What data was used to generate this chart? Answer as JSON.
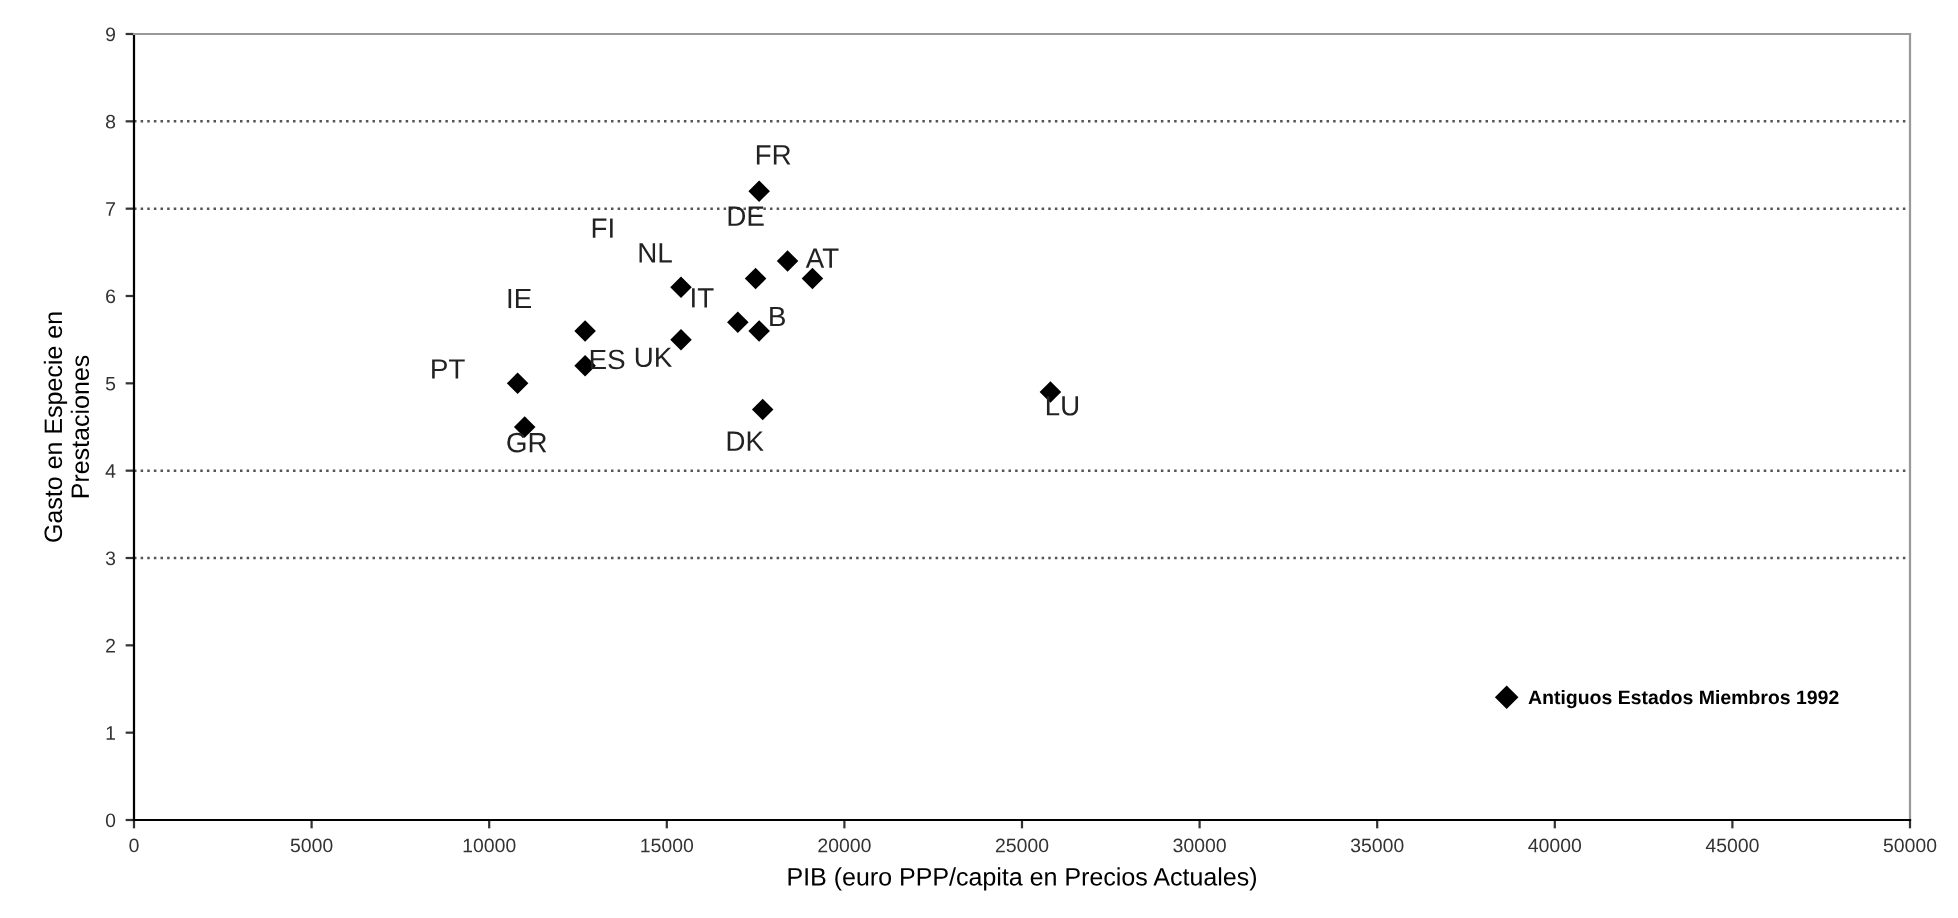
{
  "chart_data": {
    "type": "scatter",
    "xlabel": "PIB (euro PPP/capita en Precios Actuales)",
    "ylabel": "Gasto en Especie en\nPrestaciones",
    "xlim": [
      0,
      50000
    ],
    "ylim": [
      0,
      9
    ],
    "xticks": [
      0,
      5000,
      10000,
      15000,
      20000,
      25000,
      30000,
      35000,
      40000,
      45000,
      50000
    ],
    "yticks": [
      0,
      1,
      2,
      3,
      4,
      5,
      6,
      7,
      8,
      9
    ],
    "grid": false,
    "legend": "bottom right",
    "marker": "diamond",
    "ref_lines": [
      {
        "axis": "y",
        "value": 3,
        "line_style": "dotted",
        "color": "#555555"
      },
      {
        "axis": "y",
        "value": 4,
        "line_style": "dotted",
        "color": "#555555"
      },
      {
        "axis": "y",
        "value": 7,
        "line_style": "dotted",
        "color": "#555555"
      },
      {
        "axis": "y",
        "value": 8,
        "line_style": "dotted",
        "color": "#555555"
      }
    ],
    "series": [
      {
        "name": "Antiguos Estados Miembros 1992",
        "color": "#000000",
        "x": [
          17600,
          18400,
          19100,
          17500,
          15400,
          17000,
          17600,
          12700,
          15400,
          12700,
          10800,
          11000,
          17700,
          25800
        ],
        "values": [
          7.2,
          6.4,
          6.2,
          6.2,
          6.1,
          5.7,
          5.6,
          5.6,
          5.5,
          5.2,
          5.0,
          4.5,
          4.7,
          4.9
        ]
      }
    ],
    "annotations": [
      {
        "text": "FR",
        "x": 17600,
        "y": 7.2
      },
      "FI",
      {
        "text": "NL",
        "x": 15400,
        "y": 6.1
      },
      {
        "text": "DE",
        "x": 17500,
        "y": 6.2
      },
      {
        "text": "AT",
        "x": 19100,
        "y": 6.2
      },
      {
        "text": "IT",
        "x": 17000,
        "y": 5.7
      },
      {
        "text": "IE",
        "x": 12700,
        "y": 5.6
      },
      {
        "text": "PT",
        "x": 10800,
        "y": 5.0
      },
      {
        "text": "ES",
        "x": 12700,
        "y": 5.2
      },
      {
        "text": "UK",
        "x": 15400,
        "y": 5.5
      },
      {
        "text": "B",
        "x": 17600,
        "y": 5.6
      },
      {
        "text": "GR",
        "x": 11000,
        "y": 4.5
      },
      {
        "text": "DK",
        "x": 17700,
        "y": 4.7
      },
      {
        "text": "LU",
        "x": 25800,
        "y": 4.9
      }
    ]
  }
}
